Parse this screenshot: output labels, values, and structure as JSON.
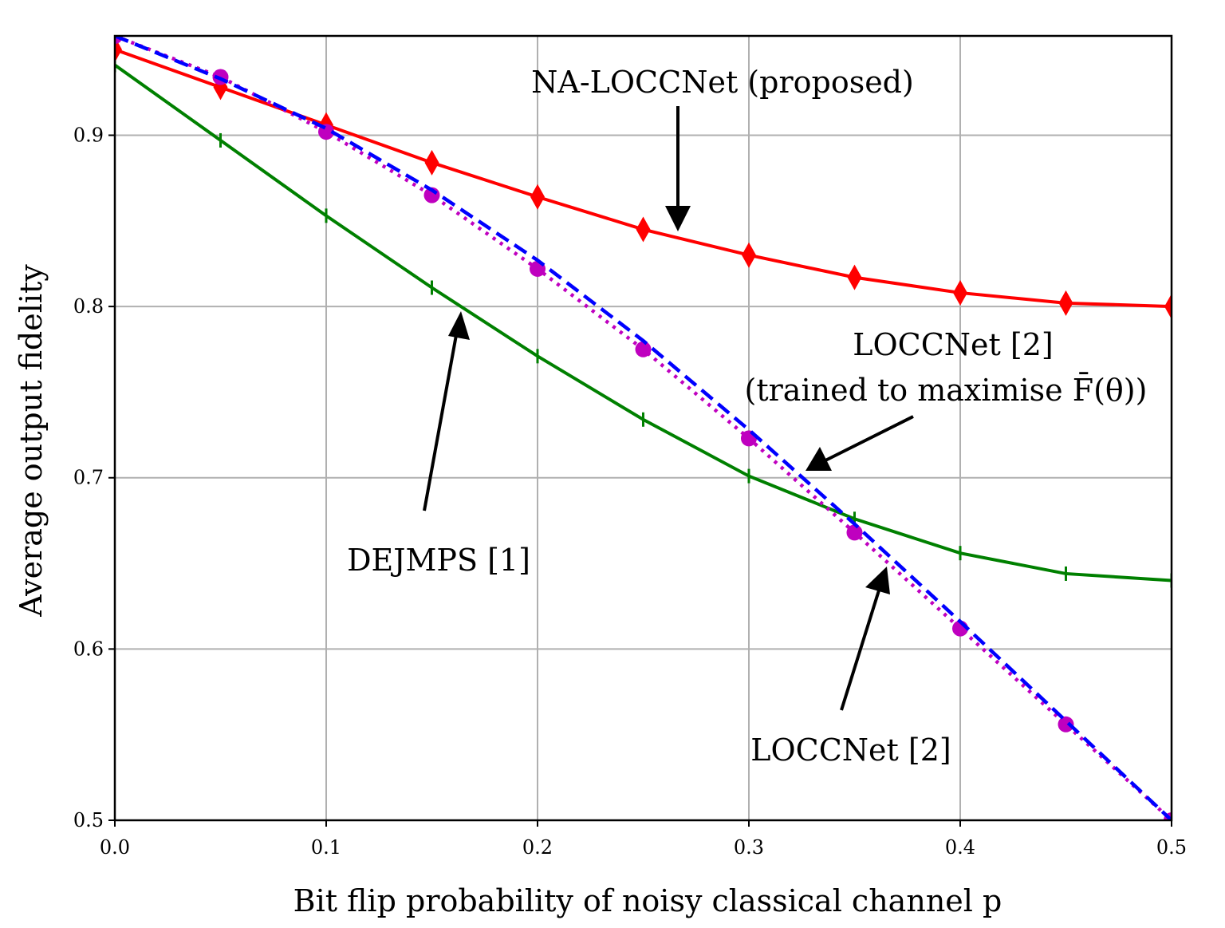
{
  "chart_data": {
    "type": "line",
    "xlabel": "Bit flip probability of noisy classical channel p",
    "ylabel": "Average output fidelity",
    "xlim": [
      0.0,
      0.5
    ],
    "ylim": [
      0.5,
      0.958
    ],
    "grid": true,
    "x_ticks": [
      "0.0",
      "0.1",
      "0.2",
      "0.3",
      "0.4",
      "0.5"
    ],
    "y_ticks": [
      "0.5",
      "0.6",
      "0.7",
      "0.8",
      "0.9"
    ],
    "x": [
      0.0,
      0.05,
      0.1,
      0.15,
      0.2,
      0.25,
      0.3,
      0.35,
      0.4,
      0.45,
      0.5
    ],
    "series": [
      {
        "color": "#ff0000",
        "line": "solid",
        "marker": "diamond",
        "values": [
          0.95,
          0.928,
          0.906,
          0.884,
          0.864,
          0.845,
          0.83,
          0.817,
          0.808,
          0.802,
          0.8
        ]
      },
      {
        "color": "#008000",
        "line": "solid",
        "marker": "vline",
        "values": [
          0.941,
          0.897,
          0.853,
          0.811,
          0.771,
          0.734,
          0.701,
          0.676,
          0.656,
          0.644,
          0.64
        ]
      },
      {
        "color": "#bf00bf",
        "line": "dotted",
        "marker": "circle",
        "values": [
          0.958,
          0.934,
          0.902,
          0.865,
          0.822,
          0.775,
          0.723,
          0.668,
          0.612,
          0.556,
          0.5
        ]
      },
      {
        "color": "#0000ff",
        "line": "dashed",
        "marker": "none",
        "values": [
          0.958,
          0.933,
          0.904,
          0.868,
          0.827,
          0.78,
          0.728,
          0.673,
          0.616,
          0.558,
          0.5
        ]
      }
    ],
    "annotations": [
      {
        "text": "NA-LOCCNet (proposed)"
      },
      {
        "text": "LOCCNet [2]",
        "text2": "(trained to maximise F̄(θ))"
      },
      {
        "text": "DEJMPS [1]"
      },
      {
        "text": "LOCCNet [2]"
      }
    ]
  }
}
